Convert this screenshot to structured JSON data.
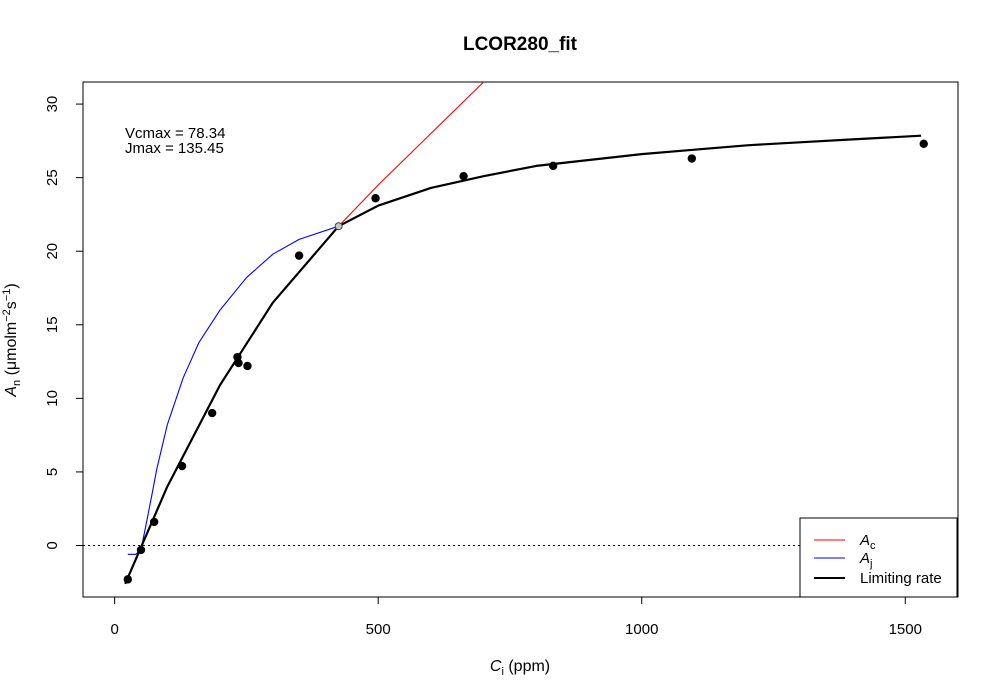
{
  "chart_data": {
    "type": "scatter",
    "title": "LCOR280_fit",
    "xlabel": {
      "main": "C",
      "sub": "i",
      "unit": " (ppm)"
    },
    "ylabel": {
      "main": "A",
      "sub": "n",
      "unit_pre": " (μmolm",
      "exp1": "−2",
      "mid": "s",
      "exp2": "−1",
      "close": ")"
    },
    "xlim": [
      -60,
      1600
    ],
    "ylim": [
      -3.5,
      31.5
    ],
    "x_ticks": [
      0,
      500,
      1000,
      1500
    ],
    "y_ticks": [
      0,
      5,
      10,
      15,
      20,
      25,
      30
    ],
    "annotations": [
      "Vcmax = 78.34",
      "Jmax = 135.45"
    ],
    "reference_line": {
      "y": 0,
      "style": "dotted"
    },
    "points": [
      {
        "x": 25,
        "y": -2.3
      },
      {
        "x": 50,
        "y": -0.3
      },
      {
        "x": 75,
        "y": 1.6
      },
      {
        "x": 128,
        "y": 5.4
      },
      {
        "x": 185,
        "y": 9.0
      },
      {
        "x": 233,
        "y": 12.8
      },
      {
        "x": 235,
        "y": 12.4
      },
      {
        "x": 252,
        "y": 12.2
      },
      {
        "x": 350,
        "y": 19.7
      },
      {
        "x": 495,
        "y": 23.6
      },
      {
        "x": 662,
        "y": 25.1
      },
      {
        "x": 832,
        "y": 25.8
      },
      {
        "x": 1095,
        "y": 26.3
      },
      {
        "x": 1535,
        "y": 27.3
      }
    ],
    "transition_point": {
      "x": 425,
      "y": 21.7
    },
    "series": [
      {
        "name": "A",
        "sub": "c",
        "color": "#ff0000",
        "x": [
          20,
          100,
          200,
          300,
          425,
          500,
          600,
          700
        ],
        "y": [
          -2.6,
          4.0,
          10.9,
          16.5,
          21.7,
          24.5,
          28.0,
          31.5
        ]
      },
      {
        "name": "A",
        "sub": "j",
        "color": "#0000ff",
        "x": [
          25,
          40,
          50,
          60,
          70,
          80,
          100,
          130,
          160,
          200,
          250,
          300,
          350,
          425
        ],
        "y": [
          -0.6,
          -0.6,
          -0.3,
          1.5,
          3.3,
          5.2,
          8.2,
          11.4,
          13.8,
          16.0,
          18.2,
          19.8,
          20.8,
          21.7
        ]
      },
      {
        "name": "Limiting rate",
        "color": "#000000",
        "x": [
          20,
          100,
          200,
          300,
          425,
          500,
          600,
          700,
          800,
          900,
          1000,
          1100,
          1200,
          1300,
          1400,
          1530
        ],
        "y": [
          -2.6,
          4.0,
          10.9,
          16.5,
          21.7,
          23.1,
          24.3,
          25.1,
          25.8,
          26.2,
          26.6,
          26.9,
          27.2,
          27.4,
          27.6,
          27.85
        ]
      }
    ]
  }
}
